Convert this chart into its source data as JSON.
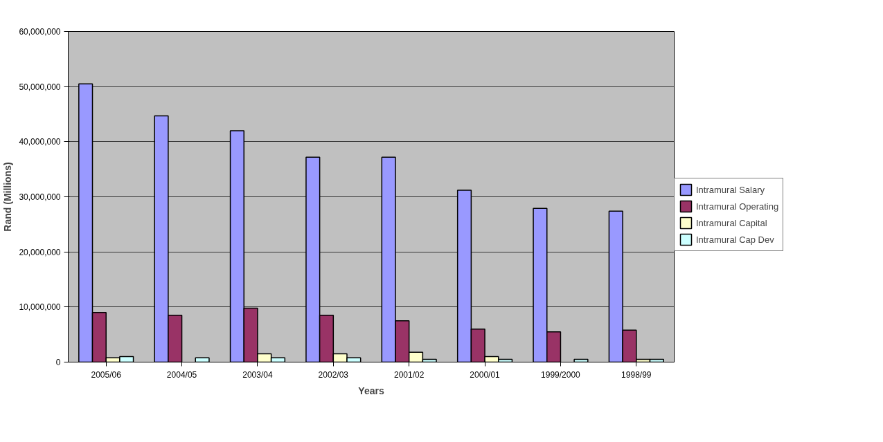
{
  "chart_data": {
    "type": "bar",
    "xlabel": "Years",
    "ylabel": "Rand (Millions)",
    "categories": [
      "2005/06",
      "2004/05",
      "2003/04",
      "2002/03",
      "2001/02",
      "2000/01",
      "1999/2000",
      "1998/99"
    ],
    "series": [
      {
        "name": "Intramural Salary",
        "color": "#9999ff",
        "values": [
          50500000,
          44700000,
          42000000,
          37200000,
          37200000,
          31200000,
          27900000,
          27400000
        ]
      },
      {
        "name": "Intramural Operating",
        "color": "#993366",
        "values": [
          9000000,
          8500000,
          9800000,
          8500000,
          7500000,
          6000000,
          5500000,
          5800000
        ]
      },
      {
        "name": "Intramural Capital",
        "color": "#ffffcc",
        "values": [
          800000,
          null,
          1500000,
          1500000,
          1800000,
          1000000,
          null,
          500000
        ]
      },
      {
        "name": "Intramural Cap Dev",
        "color": "#ccffff",
        "values": [
          1000000,
          800000,
          800000,
          800000,
          500000,
          500000,
          500000,
          500000
        ]
      }
    ],
    "ylim": [
      0,
      60000000
    ],
    "yticks": [
      {
        "value": 0,
        "label": "0"
      },
      {
        "value": 10000000,
        "label": "10,000,000"
      },
      {
        "value": 20000000,
        "label": "20,000,000"
      },
      {
        "value": 30000000,
        "label": "30,000,000"
      },
      {
        "value": 40000000,
        "label": "40,000,000"
      },
      {
        "value": 50000000,
        "label": "50,000,000"
      },
      {
        "value": 60000000,
        "label": "60,000,000"
      }
    ],
    "grid": "y",
    "legend": "right"
  }
}
